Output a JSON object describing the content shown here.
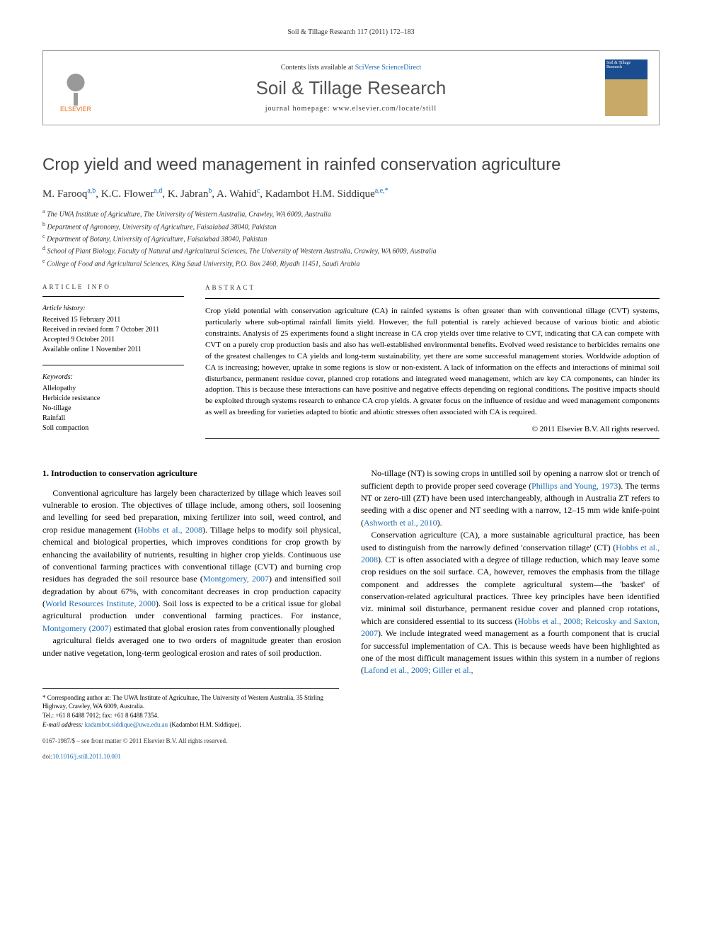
{
  "running_header": "Soil & Tillage Research 117 (2011) 172–183",
  "masthead": {
    "publisher": "ELSEVIER",
    "contents_prefix": "Contents lists available at ",
    "contents_link": "SciVerse ScienceDirect",
    "journal_name": "Soil & Tillage Research",
    "homepage_prefix": "journal homepage: ",
    "homepage_url": "www.elsevier.com/locate/still",
    "cover_label": "Soil & Tillage Research"
  },
  "article": {
    "title": "Crop yield and weed management in rainfed conservation agriculture",
    "authors_html": "M. Farooq<sup>a,b</sup>, K.C. Flower<sup>a,d</sup>, K. Jabran<sup>b</sup>, A. Wahid<sup>c</sup>, Kadambot H.M. Siddique<sup>a,e,*</sup>",
    "affiliations": [
      {
        "sup": "a",
        "text": "The UWA Institute of Agriculture, The University of Western Australia, Crawley, WA 6009, Australia"
      },
      {
        "sup": "b",
        "text": "Department of Agronomy, University of Agriculture, Faisalabad 38040, Pakistan"
      },
      {
        "sup": "c",
        "text": "Department of Botany, University of Agriculture, Faisalabad 38040, Pakistan"
      },
      {
        "sup": "d",
        "text": "School of Plant Biology, Faculty of Natural and Agricultural Sciences, The University of Western Australia, Crawley, WA 6009, Australia"
      },
      {
        "sup": "e",
        "text": "College of Food and Agricultural Sciences, King Saud University, P.O. Box 2460, Riyadh 11451, Saudi Arabia"
      }
    ]
  },
  "article_info": {
    "heading": "ARTICLE INFO",
    "history_label": "Article history:",
    "history": [
      "Received 15 February 2011",
      "Received in revised form 7 October 2011",
      "Accepted 9 October 2011",
      "Available online 1 November 2011"
    ],
    "keywords_label": "Keywords:",
    "keywords": [
      "Allelopathy",
      "Herbicide resistance",
      "No-tillage",
      "Rainfall",
      "Soil compaction"
    ]
  },
  "abstract": {
    "heading": "ABSTRACT",
    "text": "Crop yield potential with conservation agriculture (CA) in rainfed systems is often greater than with conventional tillage (CVT) systems, particularly where sub-optimal rainfall limits yield. However, the full potential is rarely achieved because of various biotic and abiotic constraints. Analysis of 25 experiments found a slight increase in CA crop yields over time relative to CVT, indicating that CA can compete with CVT on a purely crop production basis and also has well-established environmental benefits. Evolved weed resistance to herbicides remains one of the greatest challenges to CA yields and long-term sustainability, yet there are some successful management stories. Worldwide adoption of CA is increasing; however, uptake in some regions is slow or non-existent. A lack of information on the effects and interactions of minimal soil disturbance, permanent residue cover, planned crop rotations and integrated weed management, which are key CA components, can hinder its adoption. This is because these interactions can have positive and negative effects depending on regional conditions. The positive impacts should be exploited through systems research to enhance CA crop yields. A greater focus on the influence of residue and weed management components as well as breeding for varieties adapted to biotic and abiotic stresses often associated with CA is required.",
    "copyright": "© 2011 Elsevier B.V. All rights reserved."
  },
  "body": {
    "section_heading": "1. Introduction to conservation agriculture",
    "paragraphs": [
      "Conventional agriculture has largely been characterized by tillage which leaves soil vulnerable to erosion. The objectives of tillage include, among others, soil loosening and levelling for seed bed preparation, mixing fertilizer into soil, weed control, and crop residue management (<span class='ref-link'>Hobbs et al., 2008</span>). Tillage helps to modify soil physical, chemical and biological properties, which improves conditions for crop growth by enhancing the availability of nutrients, resulting in higher crop yields. Continuous use of conventional farming practices with conventional tillage (CVT) and burning crop residues has degraded the soil resource base (<span class='ref-link'>Montgomery, 2007</span>) and intensified soil degradation by about 67%, with concomitant decreases in crop production capacity (<span class='ref-link'>World Resources Institute, 2000</span>). Soil loss is expected to be a critical issue for global agricultural production under conventional farming practices. For instance, <span class='ref-link'>Montgomery (2007)</span> estimated that global erosion rates from conventionally ploughed",
      "agricultural fields averaged one to two orders of magnitude greater than erosion under native vegetation, long-term geological erosion and rates of soil production.",
      "No-tillage (NT) is sowing crops in untilled soil by opening a narrow slot or trench of sufficient depth to provide proper seed coverage (<span class='ref-link'>Phillips and Young, 1973</span>). The terms NT or zero-till (ZT) have been used interchangeably, although in Australia ZT refers to seeding with a disc opener and NT seeding with a narrow, 12–15 mm wide knife-point (<span class='ref-link'>Ashworth et al., 2010</span>).",
      "Conservation agriculture (CA), a more sustainable agricultural practice, has been used to distinguish from the narrowly defined 'conservation tillage' (CT) (<span class='ref-link'>Hobbs et al., 2008</span>). CT is often associated with a degree of tillage reduction, which may leave some crop residues on the soil surface. CA, however, removes the emphasis from the tillage component and addresses the complete agricultural system—the 'basket' of conservation-related agricultural practices. Three key principles have been identified viz. minimal soil disturbance, permanent residue cover and planned crop rotations, which are considered essential to its success (<span class='ref-link'>Hobbs et al., 2008; Reicosky and Saxton, 2007</span>). We include integrated weed management as a fourth component that is crucial for successful implementation of CA. This is because weeds have been highlighted as one of the most difficult management issues within this system in a number of regions (<span class='ref-link'>Lafond et al., 2009; Giller et al.,</span>"
    ]
  },
  "footnote": {
    "corr_label": "* Corresponding author at:",
    "corr_text": " The UWA Institute of Agriculture, The University of Western Australia, 35 Stirling Highway, Crawley, WA 6009, Australia.",
    "tel": "Tel.: +61 8 6488 7012; fax: +61 8 6488 7354.",
    "email_label": "E-mail address: ",
    "email": "kadambot.siddique@uwa.edu.au",
    "email_name": " (Kadambot H.M. Siddique)."
  },
  "footer": {
    "line1": "0167-1987/$ – see front matter © 2011 Elsevier B.V. All rights reserved.",
    "line2": "doi:10.1016/j.still.2011.10.001"
  },
  "colors": {
    "link": "#1a6bb3",
    "publisher_orange": "#e9711c",
    "title_gray": "#444444",
    "border": "#999999"
  }
}
